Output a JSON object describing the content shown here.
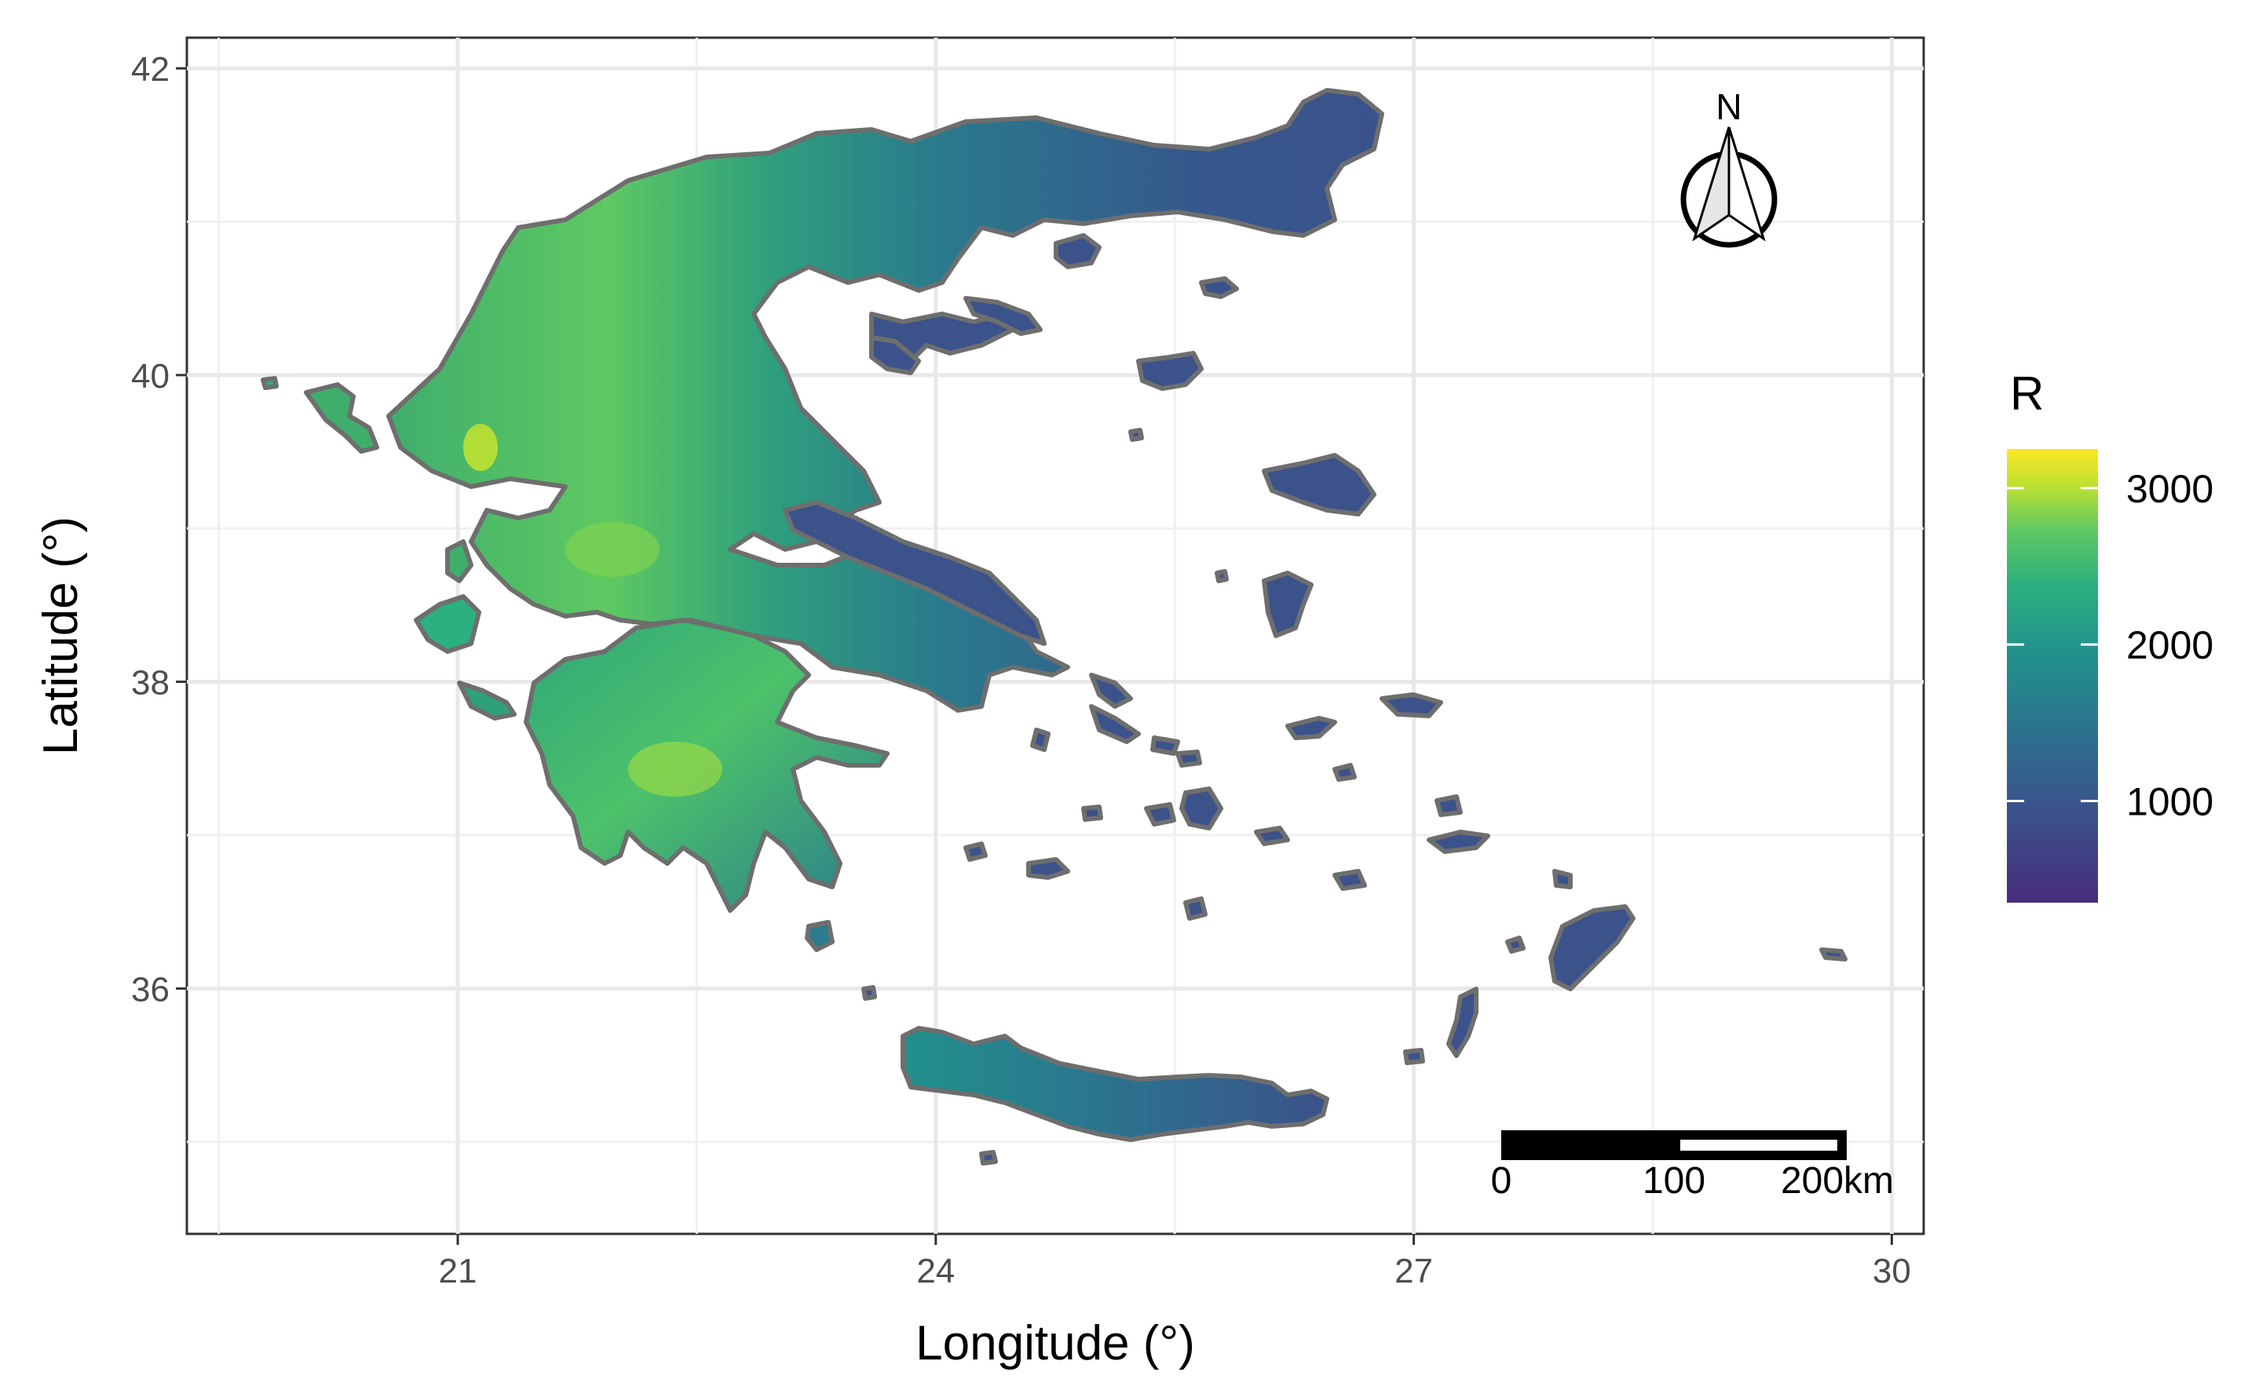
{
  "map": {
    "x_label": "Longitude (°)",
    "y_label": "Latitude (°)",
    "x_ticks": [
      "21",
      "24",
      "27",
      "30"
    ],
    "y_ticks": [
      "42",
      "40",
      "38",
      "36"
    ],
    "x_tick_values": [
      21,
      24,
      27,
      30
    ],
    "y_tick_values": [
      42,
      40,
      38,
      36
    ],
    "xlim": [
      19.3,
      30.2
    ],
    "ylim": [
      34.4,
      42.2
    ],
    "region": "Greece",
    "fill_palette": [
      "#440154",
      "#3b528b",
      "#21918c",
      "#5ec962",
      "#fde725"
    ]
  },
  "legend": {
    "title": "R",
    "labels": [
      "3000",
      "2000",
      "1000"
    ],
    "values": [
      3000,
      2000,
      1000
    ],
    "min": 350,
    "max": 3250,
    "colors": [
      "#fde725",
      "#bde131",
      "#5ec962",
      "#2bb07f",
      "#21918c",
      "#2c728e",
      "#3b528b",
      "#472d7b"
    ]
  },
  "scale_bar": {
    "labels": [
      "0",
      "100",
      "200km"
    ]
  },
  "north_arrow": {
    "label": "N"
  }
}
